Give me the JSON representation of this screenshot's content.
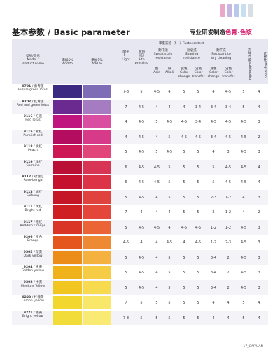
{
  "header": {
    "title": "基本参数 / Basic parameter",
    "slogan_prefix": "专业研发制造",
    "slogan_accent1": "色膏",
    "slogan_accent2": "色浆",
    "stripe_colors": [
      "#e9a8c6",
      "#c8b6e2",
      "#b9c9ec",
      "#c7dff0",
      "#d9dde4"
    ]
  },
  "columns": {
    "model_cn": "型号/品名",
    "model_en": "Model /",
    "model_en2": "Product name",
    "add5_cn": "添加5%",
    "add5_en": "Add to",
    "add1_cn": "添加1%",
    "add1_en": "Add to",
    "fastness_cn": "牢度实验（5+）Fastness test",
    "light_cn": "耐光",
    "light_l2": "5+",
    "light_en": "Light",
    "hto_cn": "耐热",
    "hto_l2": "（压）",
    "hto_en": "Hto",
    "hto_en2": "pressing",
    "sweat_cn": "耐汗渍",
    "sweat_en": "Sweat stain",
    "sweat_en2": "resistance",
    "acid_cn": "酸",
    "acid_en": "Acid",
    "alkali_cn": "碱",
    "alkali_en": "Alkali",
    "soap_cn": "耐皂洗",
    "soap_en": "Soaping",
    "soap_en2": "resistance",
    "dry_cn": "耐干洗",
    "dry_en": "Resistant to",
    "dry_en2": "dry cleaning",
    "c_change": "变色",
    "c_transfer": "沾色",
    "c_color": "Color",
    "c_change_en": "change",
    "c_transfer_en": "transfer",
    "sub_cn": "升华牢度",
    "sub_en": "sublimation",
    "mig_cn": "迁移性",
    "mig_en": "Migration"
  },
  "rows": [
    {
      "code": "9701",
      "cn": "紫青莲",
      "en": "Purple green lotus",
      "c5": "#3c2a82",
      "c1": "#7f6cb6",
      "vals": [
        "7-8",
        "5",
        "4-5",
        "4",
        "5",
        "5",
        "4",
        "4-5",
        "5",
        "4"
      ]
    },
    {
      "code": "9702",
      "cn": "红青莲",
      "en": "Red and green lotus",
      "c5": "#6b2a90",
      "c1": "#a57bc1",
      "vals": [
        "7",
        "4-5",
        "4",
        "4",
        "4",
        "3-4",
        "3-4",
        "3-4",
        "5",
        "4"
      ]
    },
    {
      "code": "9116",
      "cn": "红莲",
      "en": "Red lotus",
      "c5": "#c0157e",
      "c1": "#d94ea0",
      "vals": [
        "4",
        "4-5",
        "5",
        "4-5",
        "4-5",
        "3-4",
        "4-5",
        "4-5",
        "4-5",
        "3"
      ]
    },
    {
      "code": "9115",
      "cn": "紫红",
      "en": "Purplish red",
      "c5": "#b40c5e",
      "c1": "#d63a88",
      "vals": [
        "4",
        "4-5",
        "4",
        "5",
        "4-5",
        "4-5",
        "3-4",
        "4-5",
        "4-5",
        "2"
      ]
    },
    {
      "code": "9118",
      "cn": "桃红",
      "en": "Peach",
      "c5": "#cc1754",
      "c1": "#e2457a",
      "vals": [
        "5",
        "4-5",
        "5",
        "4-5",
        "5",
        "5",
        "4",
        "3",
        "4-5",
        "3"
      ]
    },
    {
      "code": "9119",
      "cn": "洋红",
      "en": "Carmine",
      "c5": "#bb1035",
      "c1": "#d83556",
      "vals": [
        "6",
        "4-5",
        "4-5",
        "5",
        "5",
        "5",
        "5",
        "4-5",
        "4-5",
        "4"
      ]
    },
    {
      "code": "9112",
      "cn": "玫瑰红",
      "en": "Rose-benga",
      "c5": "#c5112e",
      "c1": "#dc3346",
      "vals": [
        "6",
        "4-5",
        "4-5",
        "5",
        "5",
        "5",
        "5",
        "4-5",
        "4-5",
        "4"
      ]
    },
    {
      "code": "9113",
      "cn": "妃红",
      "en": "Feihong",
      "c5": "#c51628",
      "c1": "#e0433d",
      "vals": [
        "5",
        "4-5",
        "4",
        "5",
        "5",
        "5",
        "2-3",
        "1-2",
        "4",
        "3"
      ]
    },
    {
      "code": "9111",
      "cn": "大红",
      "en": "Bright red",
      "c5": "#cf1f23",
      "c1": "#e4463a",
      "vals": [
        "7",
        "4",
        "4",
        "4",
        "5",
        "5",
        "2",
        "1-2",
        "4",
        "2"
      ]
    },
    {
      "code": "9117",
      "cn": "桔红",
      "en": "Reddish Orange",
      "c5": "#d93425",
      "c1": "#ea6436",
      "vals": [
        "5",
        "4-5",
        "4-5",
        "4",
        "4-5",
        "4-5",
        "1-2",
        "1-2",
        "4-5",
        "3"
      ]
    },
    {
      "code": "9206",
      "cn": "橙色",
      "en": "Orange",
      "c5": "#e5561f",
      "c1": "#ef8a34",
      "vals": [
        "4-5",
        "4",
        "4",
        "4-5",
        "4",
        "4-5",
        "1-2",
        "2-3",
        "4-5",
        "3"
      ]
    },
    {
      "code": "9205",
      "cn": "深黄",
      "en": "Dark yellow",
      "c5": "#ec8d1a",
      "c1": "#f4b13d",
      "vals": [
        "5",
        "4-5",
        "4",
        "5",
        "5",
        "5",
        "3-4",
        "2",
        "4-5",
        "3"
      ]
    },
    {
      "code": "9204",
      "cn": "金黄",
      "en": "Golden yellow",
      "c5": "#f0b21b",
      "c1": "#f6cc45",
      "vals": [
        "5",
        "4-5",
        "4",
        "5",
        "5",
        "5",
        "3-4",
        "2",
        "4-5",
        "3"
      ]
    },
    {
      "code": "9202",
      "cn": "中黄",
      "en": "Medium Yellow",
      "c5": "#f2c620",
      "c1": "#f8da4e",
      "vals": [
        "5",
        "4-5",
        "4",
        "5",
        "5",
        "5",
        "3-4",
        "2",
        "4-5",
        "3"
      ]
    },
    {
      "code": "9220",
      "cn": "柠檬黄",
      "en": "Lemon yellow",
      "c5": "#f2d72e",
      "c1": "#f9e76a",
      "vals": [
        "7",
        "5",
        "5",
        "5",
        "5",
        "5",
        "4",
        "4",
        "5",
        "4"
      ]
    },
    {
      "code": "9221",
      "cn": "艳黄",
      "en": "Bright yellow",
      "c5": "#f1dc3a",
      "c1": "#f8ea72",
      "vals": [
        "7-8",
        "5",
        "5",
        "5",
        "5",
        "5",
        "4",
        "4",
        "5",
        "4"
      ]
    }
  ],
  "footer": "17_CAIYUAN"
}
